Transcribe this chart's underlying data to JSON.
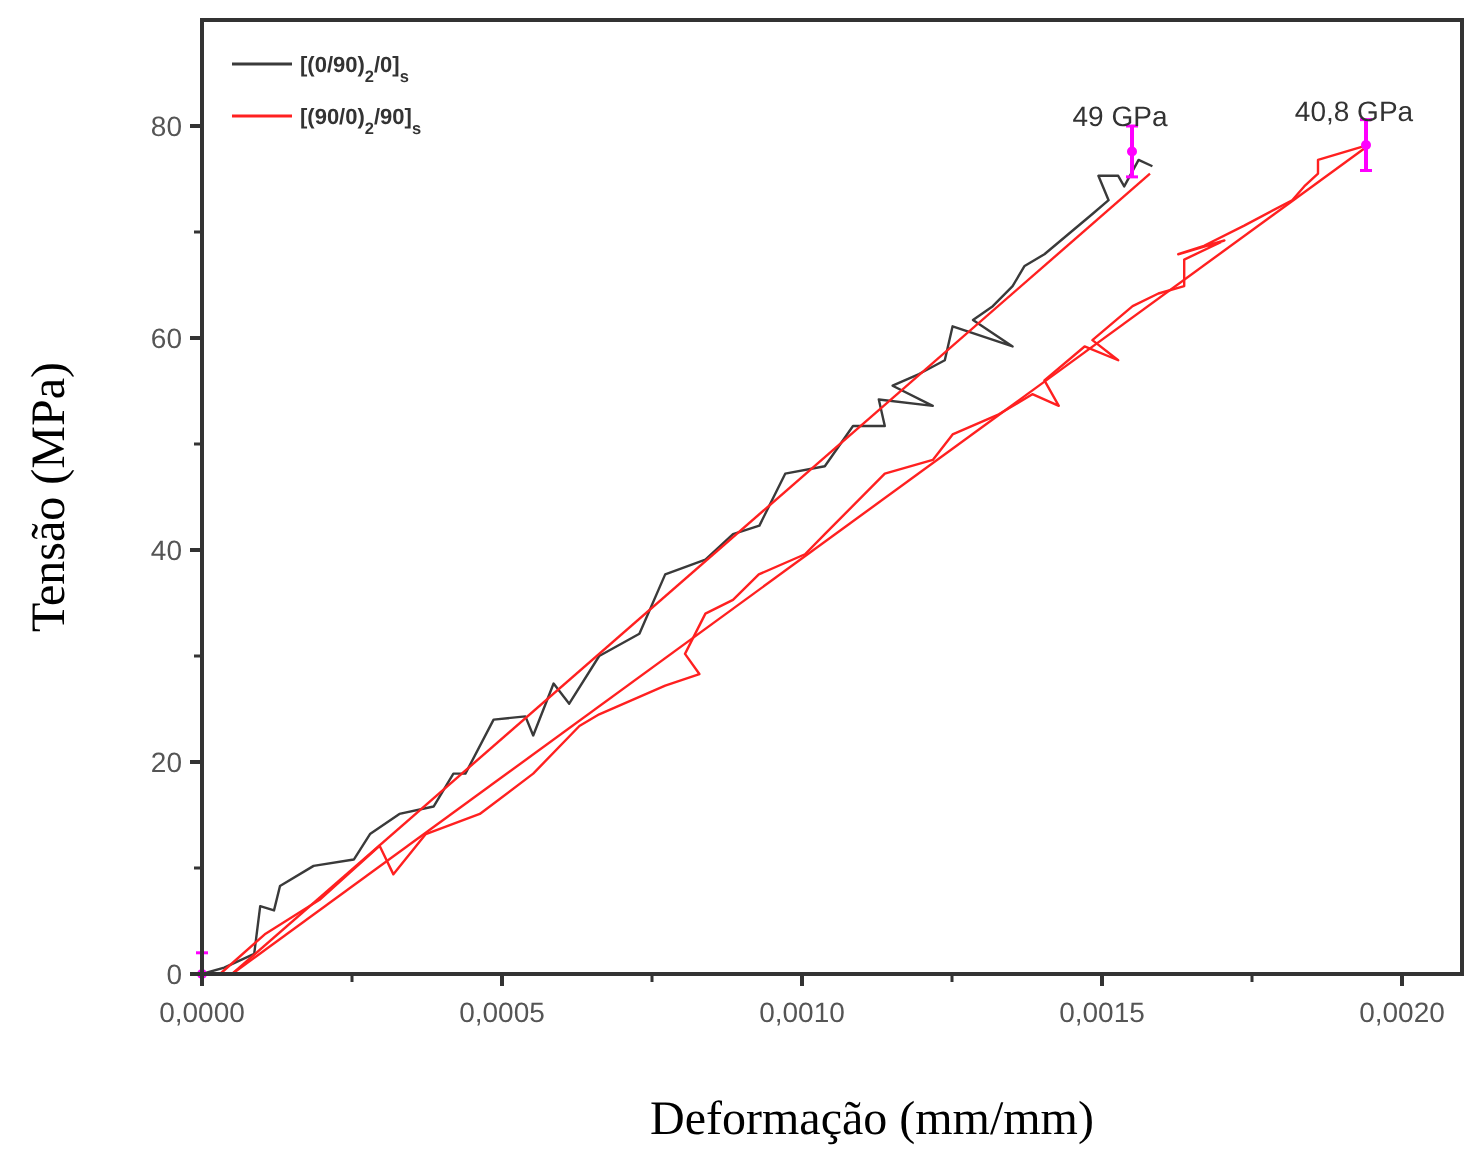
{
  "chart_data": {
    "type": "line",
    "xlabel": "Deformação (mm/mm)",
    "ylabel": "Tensão (MPa)",
    "xlim": [
      0,
      0.0021
    ],
    "ylim": [
      0,
      90
    ],
    "xticks": [
      {
        "value": 0,
        "label": "0,0000"
      },
      {
        "value": 0.0005,
        "label": "0,0005"
      },
      {
        "value": 0.001,
        "label": "0,0010"
      },
      {
        "value": 0.0015,
        "label": "0,0015"
      },
      {
        "value": 0.002,
        "label": "0,0020"
      }
    ],
    "yticks": [
      0,
      20,
      40,
      60,
      80
    ],
    "grid": false,
    "legend": "top left",
    "line_style": "solid",
    "marker": "none",
    "annotations": [
      {
        "text": "49 GPa",
        "x": 0.00155,
        "y": 80
      },
      {
        "text": "40,8 GPa",
        "x": 0.00194,
        "y": 80.5
      }
    ],
    "series": [
      {
        "name": "[(0/90)$_{2}$/0]$_{s}$",
        "color": "#3a3a3a",
        "x": [
          0,
          3.7e-05,
          8.7e-05,
          9.7e-05,
          0.00012,
          0.00013,
          0.000186,
          0.000253,
          0.00028,
          0.000329,
          0.000386,
          0.000419,
          0.000439,
          0.000486,
          0.000539,
          0.000552,
          0.000586,
          0.000612,
          0.000662,
          0.000729,
          0.000772,
          0.000839,
          0.000885,
          0.000929,
          0.000972,
          0.001038,
          0.001085,
          0.001138,
          0.001128,
          0.001218,
          0.001151,
          0.001195,
          0.001238,
          0.001251,
          0.001351,
          0.001285,
          0.001318,
          0.001351,
          0.001371,
          0.001404,
          0.001484,
          0.001511,
          0.001494,
          0.001527,
          0.001537,
          0.001561,
          0.001584
        ],
        "values": [
          0,
          0.6,
          1.9,
          6.4,
          6.0,
          8.3,
          10.2,
          10.8,
          13.2,
          15.1,
          15.8,
          18.9,
          18.9,
          24.0,
          24.3,
          22.5,
          27.4,
          25.5,
          30.0,
          32.1,
          37.7,
          39.1,
          41.5,
          42.3,
          47.2,
          47.9,
          51.7,
          51.7,
          54.2,
          53.6,
          55.5,
          56.6,
          57.9,
          61.1,
          59.2,
          61.7,
          63.0,
          64.9,
          66.8,
          67.9,
          71.7,
          73.0,
          75.3,
          75.3,
          74.3,
          76.8,
          76.2
        ]
      },
      {
        "name": "[(90/0)$_{2}$/90]$_{s}$",
        "color": "#ff2020",
        "x": [
          3e-05,
          0.000106,
          0.000196,
          0.000296,
          0.000319,
          0.000373,
          0.000463,
          0.000552,
          0.000629,
          0.000662,
          0.000772,
          0.000829,
          0.000805,
          0.000839,
          0.000885,
          0.000928,
          0.001005,
          0.001038,
          0.001138,
          0.001218,
          0.001251,
          0.001328,
          0.001384,
          0.001428,
          0.001404,
          0.001471,
          0.001527,
          0.001484,
          0.001551,
          0.001594,
          0.001637,
          0.001637,
          0.001704,
          0.001627,
          0.00167,
          0.001737,
          0.001817,
          0.001837,
          0.00186,
          0.00186,
          0.001937
        ],
        "values": [
          0,
          3.8,
          7.0,
          12.1,
          9.4,
          13.2,
          15.1,
          18.9,
          23.4,
          24.5,
          27.2,
          28.3,
          30.2,
          34.0,
          35.3,
          37.7,
          39.6,
          41.5,
          47.2,
          48.5,
          50.9,
          52.8,
          54.7,
          53.6,
          56.0,
          59.2,
          57.9,
          59.8,
          63.0,
          64.2,
          64.9,
          67.4,
          69.2,
          67.9,
          68.7,
          70.6,
          73.0,
          74.3,
          75.5,
          76.8,
          78.1
        ]
      },
      {
        "type": "line",
        "color": "#ff2020",
        "x": [
          5e-05,
          0.00158
        ],
        "values": [
          0,
          75.5
        ]
      },
      {
        "type": "line",
        "color": "#ff2020",
        "x": [
          5e-05,
          0.00194
        ],
        "values": [
          0,
          78
        ]
      },
      {
        "type": "scatter",
        "color": "#ff00ff",
        "marker": "circle",
        "x": [
          0,
          0.00155,
          0.00194
        ],
        "values": [
          0,
          77.6,
          78.2
        ],
        "errors": [
          [
            0,
            2
          ],
          2.4,
          2.4
        ]
      }
    ]
  }
}
